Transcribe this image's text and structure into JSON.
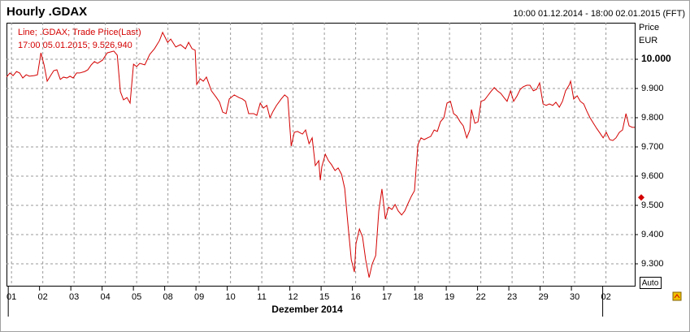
{
  "chart_data": {
    "type": "line",
    "title": "Hourly .GDAX",
    "date_range": "10:00 01.12.2014 - 18:00 02.01.2015 (FFT)",
    "y_label": "Price",
    "y_unit": "EUR",
    "x_label": "Dezember 2014",
    "annotations": [
      "Line; .GDAX; Trade Price(Last)",
      "17:00 05.01.2015; 9.526,940"
    ],
    "last_value": 9526.94,
    "auto_button": "Auto",
    "color": "#d40000",
    "grid": true,
    "xlim": [
      -0.16,
      19.92
    ],
    "xticks": [
      {
        "value": 0,
        "label": "01"
      },
      {
        "value": 1,
        "label": "02"
      },
      {
        "value": 2,
        "label": "03"
      },
      {
        "value": 3,
        "label": "04"
      },
      {
        "value": 4,
        "label": "05"
      },
      {
        "value": 5,
        "label": "08"
      },
      {
        "value": 6,
        "label": "09"
      },
      {
        "value": 7,
        "label": "10"
      },
      {
        "value": 8,
        "label": "11"
      },
      {
        "value": 9,
        "label": "12"
      },
      {
        "value": 10,
        "label": "15"
      },
      {
        "value": 11,
        "label": "16"
      },
      {
        "value": 12,
        "label": "17"
      },
      {
        "value": 13,
        "label": "18"
      },
      {
        "value": 14,
        "label": "19"
      },
      {
        "value": 15,
        "label": "22"
      },
      {
        "value": 16,
        "label": "23"
      },
      {
        "value": 17,
        "label": "29"
      },
      {
        "value": 18,
        "label": "30"
      },
      {
        "value": 19,
        "label": "02"
      }
    ],
    "ylim": [
      9225,
      10125
    ],
    "yticks": [
      {
        "value": 9300,
        "label": "9.300"
      },
      {
        "value": 9400,
        "label": "9.400"
      },
      {
        "value": 9500,
        "label": "9.500"
      },
      {
        "value": 9600,
        "label": "9.600"
      },
      {
        "value": 9700,
        "label": "9.700"
      },
      {
        "value": 9800,
        "label": "9.800"
      },
      {
        "value": 9900,
        "label": "9.900"
      },
      {
        "value": 10000,
        "label": "10.000"
      }
    ],
    "x": [
      -0.16,
      -0.05,
      0.05,
      0.16,
      0.26,
      0.36,
      0.47,
      0.57,
      0.73,
      0.83,
      0.94,
      1.04,
      1.14,
      1.25,
      1.35,
      1.45,
      1.56,
      1.66,
      1.77,
      1.87,
      1.97,
      2.08,
      2.18,
      2.34,
      2.44,
      2.55,
      2.65,
      2.75,
      2.91,
      3.06,
      3.27,
      3.38,
      3.48,
      3.58,
      3.69,
      3.79,
      3.9,
      4.0,
      4.1,
      4.26,
      4.42,
      4.57,
      4.73,
      4.83,
      4.99,
      5.09,
      5.25,
      5.4,
      5.56,
      5.66,
      5.77,
      5.87,
      5.92,
      6.03,
      6.13,
      6.23,
      6.39,
      6.55,
      6.65,
      6.75,
      6.86,
      6.96,
      7.12,
      7.27,
      7.38,
      7.48,
      7.58,
      7.74,
      7.84,
      7.95,
      8.05,
      8.16,
      8.26,
      8.36,
      8.47,
      8.62,
      8.73,
      8.83,
      8.94,
      9.04,
      9.14,
      9.3,
      9.4,
      9.51,
      9.61,
      9.71,
      9.82,
      9.87,
      9.92,
      10.03,
      10.13,
      10.23,
      10.34,
      10.44,
      10.55,
      10.65,
      10.75,
      10.86,
      10.96,
      11.01,
      11.12,
      11.22,
      11.32,
      11.43,
      11.53,
      11.64,
      11.74,
      11.84,
      11.95,
      12.05,
      12.16,
      12.26,
      12.36,
      12.47,
      12.57,
      12.68,
      12.78,
      12.88,
      12.99,
      13.09,
      13.19,
      13.3,
      13.4,
      13.51,
      13.61,
      13.71,
      13.82,
      13.92,
      14.03,
      14.13,
      14.23,
      14.34,
      14.44,
      14.55,
      14.65,
      14.7,
      14.81,
      14.91,
      15.01,
      15.12,
      15.22,
      15.32,
      15.43,
      15.53,
      15.64,
      15.74,
      15.84,
      15.95,
      16.05,
      16.16,
      16.26,
      16.36,
      16.47,
      16.57,
      16.68,
      16.78,
      16.88,
      16.99,
      17.09,
      17.19,
      17.3,
      17.4,
      17.51,
      17.61,
      17.71,
      17.82,
      17.87,
      17.97,
      18.08,
      18.18,
      18.29,
      18.39,
      18.49,
      18.6,
      18.7,
      18.81,
      18.91,
      19.01,
      19.12,
      19.22,
      19.32,
      19.43,
      19.53,
      19.64,
      19.74,
      19.84,
      19.92
    ],
    "values": [
      9939,
      9953,
      9944,
      9958,
      9953,
      9936,
      9947,
      9942,
      9944,
      9947,
      10022,
      9981,
      9925,
      9944,
      9961,
      9964,
      9931,
      9939,
      9936,
      9942,
      9936,
      9953,
      9953,
      9958,
      9964,
      9981,
      9992,
      9986,
      9997,
      10022,
      10028,
      10014,
      9889,
      9861,
      9869,
      9850,
      9983,
      9975,
      9986,
      9981,
      10017,
      10036,
      10064,
      10092,
      10058,
      10069,
      10042,
      10050,
      10036,
      10058,
      10036,
      10031,
      9914,
      9933,
      9925,
      9939,
      9892,
      9869,
      9853,
      9819,
      9814,
      9864,
      9878,
      9869,
      9864,
      9856,
      9814,
      9814,
      9808,
      9850,
      9833,
      9842,
      9800,
      9822,
      9842,
      9864,
      9878,
      9869,
      9703,
      9750,
      9753,
      9744,
      9758,
      9711,
      9731,
      9636,
      9653,
      9586,
      9633,
      9675,
      9653,
      9639,
      9619,
      9628,
      9606,
      9558,
      9439,
      9314,
      9272,
      9369,
      9419,
      9392,
      9314,
      9253,
      9300,
      9328,
      9481,
      9556,
      9453,
      9494,
      9486,
      9503,
      9481,
      9467,
      9481,
      9508,
      9531,
      9550,
      9708,
      9731,
      9725,
      9731,
      9736,
      9758,
      9753,
      9786,
      9800,
      9850,
      9856,
      9814,
      9806,
      9786,
      9772,
      9731,
      9758,
      9828,
      9781,
      9786,
      9856,
      9861,
      9875,
      9889,
      9903,
      9892,
      9883,
      9869,
      9856,
      9892,
      9856,
      9875,
      9897,
      9906,
      9911,
      9911,
      9892,
      9897,
      9919,
      9847,
      9842,
      9847,
      9842,
      9853,
      9836,
      9856,
      9892,
      9911,
      9925,
      9864,
      9875,
      9856,
      9847,
      9822,
      9800,
      9781,
      9764,
      9747,
      9731,
      9750,
      9725,
      9722,
      9731,
      9750,
      9758,
      9814,
      9772,
      9767,
      9767
    ]
  }
}
